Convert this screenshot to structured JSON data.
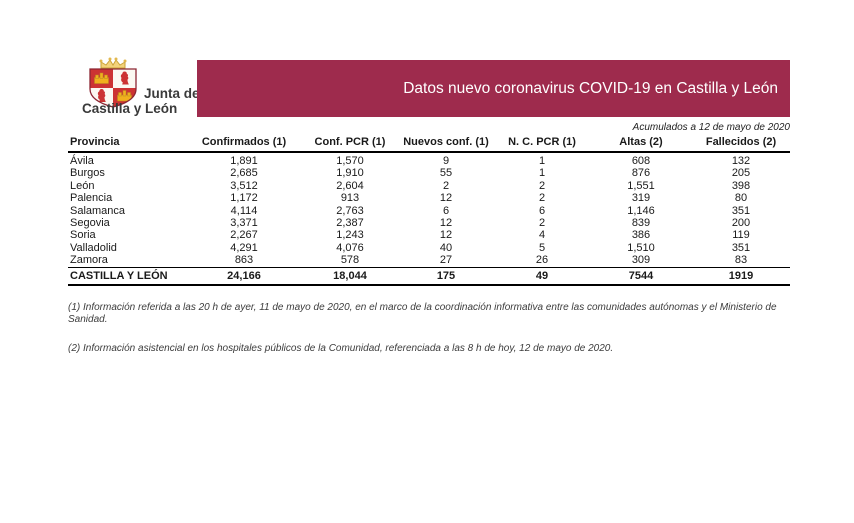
{
  "logo": {
    "line1": "Junta de",
    "line2": "Castilla y León"
  },
  "banner": {
    "title": "Datos nuevo coronavirus COVID-19 en Castilla y León",
    "background_color": "#9E2B4D",
    "text_color": "#FFFFFF"
  },
  "subtitle": "Acumulados a 12 de mayo de 2020",
  "table": {
    "columns": [
      "Provincia",
      "Confirmados (1)",
      "Conf. PCR (1)",
      "Nuevos conf. (1)",
      "N. C. PCR (1)",
      "Altas (2)",
      "Fallecidos (2)"
    ],
    "rows": [
      [
        "Ávila",
        "1,891",
        "1,570",
        "9",
        "1",
        "608",
        "132"
      ],
      [
        "Burgos",
        "2,685",
        "1,910",
        "55",
        "1",
        "876",
        "205"
      ],
      [
        "León",
        "3,512",
        "2,604",
        "2",
        "2",
        "1,551",
        "398"
      ],
      [
        "Palencia",
        "1,172",
        "913",
        "12",
        "2",
        "319",
        "80"
      ],
      [
        "Salamanca",
        "4,114",
        "2,763",
        "6",
        "6",
        "1,146",
        "351"
      ],
      [
        "Segovia",
        "3,371",
        "2,387",
        "12",
        "2",
        "839",
        "200"
      ],
      [
        "Soria",
        "2,267",
        "1,243",
        "12",
        "4",
        "386",
        "119"
      ],
      [
        "Valladolid",
        "4,291",
        "4,076",
        "40",
        "5",
        "1,510",
        "351"
      ],
      [
        "Zamora",
        "863",
        "578",
        "27",
        "26",
        "309",
        "83"
      ]
    ],
    "total_row": [
      "CASTILLA Y LEÓN",
      "24,166",
      "18,044",
      "175",
      "49",
      "7544",
      "1919"
    ]
  },
  "footnotes": [
    "(1) Información referida a las 20 h de ayer, 11 de mayo de 2020, en el marco de la coordinación informativa entre las comunidades autónomas y el Ministerio de Sanidad.",
    "(2) Información asistencial en los hospitales públicos de la Comunidad, referenciada a las 8 h de hoy, 12 de mayo de 2020."
  ]
}
